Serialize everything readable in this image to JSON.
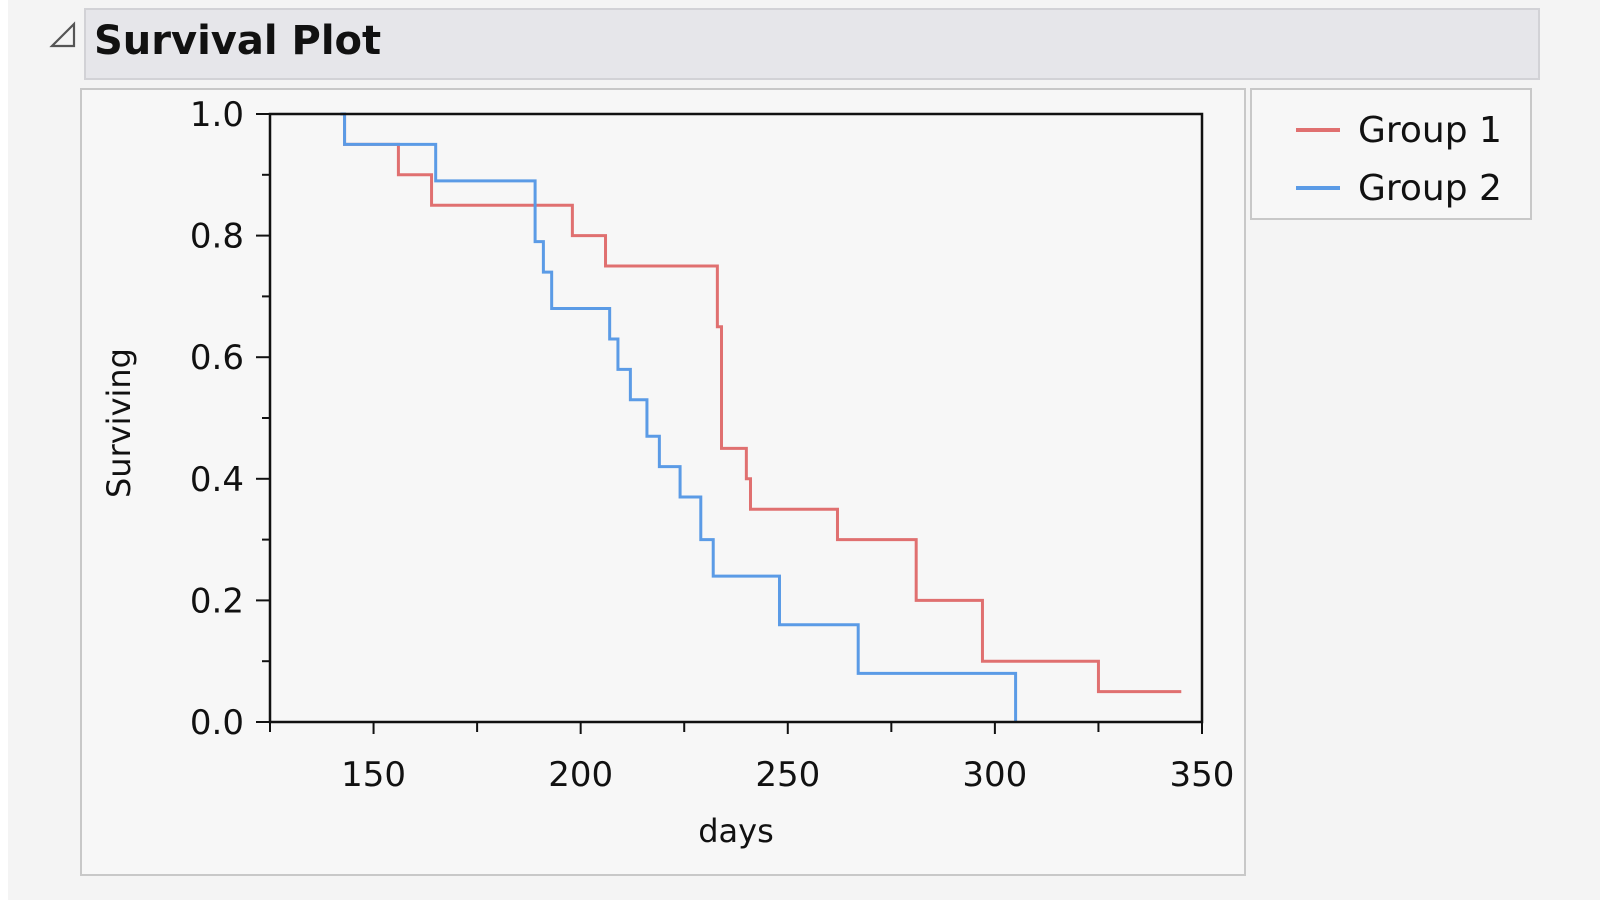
{
  "title": "Survival Plot",
  "chart_data": {
    "type": "line",
    "step": true,
    "title": "",
    "xlabel": "days",
    "ylabel": "Surviving",
    "xlim": [
      125,
      350
    ],
    "ylim": [
      0,
      1
    ],
    "xticks": [
      "150",
      "200",
      "250",
      "300",
      "350"
    ],
    "yticks": [
      "0.0",
      "0.2",
      "0.4",
      "0.6",
      "0.8",
      "1.0"
    ],
    "grid": false,
    "legend_position": "right",
    "series": [
      {
        "name": "Group 1",
        "color": "#e07070",
        "x": [
          142,
          143,
          156,
          164,
          198,
          206,
          233,
          234,
          235,
          240,
          241,
          262,
          281,
          297,
          325,
          345
        ],
        "y": [
          1.0,
          0.95,
          0.9,
          0.85,
          0.8,
          0.75,
          0.65,
          0.45,
          0.45,
          0.4,
          0.35,
          0.3,
          0.2,
          0.1,
          0.05,
          0.05
        ]
      },
      {
        "name": "Group 2",
        "color": "#5b9be6",
        "x": [
          142,
          143,
          165,
          189,
          191,
          193,
          207,
          209,
          212,
          216,
          219,
          224,
          229,
          232,
          236,
          248,
          267,
          304,
          305
        ],
        "y": [
          1.0,
          0.95,
          0.89,
          0.79,
          0.74,
          0.68,
          0.63,
          0.58,
          0.53,
          0.47,
          0.42,
          0.37,
          0.3,
          0.24,
          0.24,
          0.16,
          0.08,
          0.08,
          0.0
        ]
      }
    ]
  }
}
